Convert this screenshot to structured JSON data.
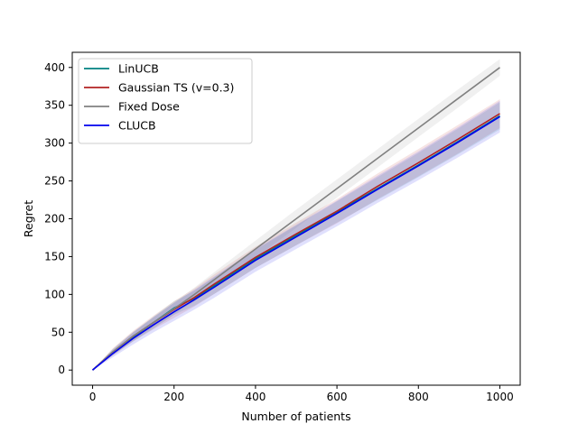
{
  "chart_data": {
    "type": "line",
    "title": "",
    "xlabel": "Number of patients",
    "ylabel": "Regret",
    "xlim": [
      -50,
      1050
    ],
    "ylim": [
      -20,
      420
    ],
    "xticks": [
      0,
      200,
      400,
      600,
      800,
      1000
    ],
    "yticks": [
      0,
      50,
      100,
      150,
      200,
      250,
      300,
      350,
      400
    ],
    "grid": false,
    "legend_position": "top-left",
    "band": "shaded confidence band around each series",
    "series": [
      {
        "name": "LinUCB",
        "color": "#008080",
        "x": [
          0,
          50,
          100,
          150,
          200,
          250,
          300,
          400,
          500,
          600,
          700,
          800,
          900,
          1000
        ],
        "y": [
          0,
          24,
          44,
          63,
          82,
          95,
          112,
          147,
          178,
          209,
          240,
          271,
          303,
          336
        ],
        "band": [
          0,
          4,
          6,
          8,
          9,
          10,
          11,
          12,
          13,
          14,
          15,
          16,
          17,
          18
        ]
      },
      {
        "name": "Gaussian TS (v=0.3)",
        "color": "#b22222",
        "x": [
          0,
          50,
          100,
          150,
          200,
          250,
          300,
          400,
          500,
          600,
          700,
          800,
          900,
          1000
        ],
        "y": [
          0,
          24,
          45,
          63,
          80,
          96,
          114,
          149,
          180,
          210,
          243,
          274,
          306,
          339
        ],
        "band": [
          0,
          5,
          7,
          9,
          11,
          12,
          13,
          14,
          15,
          16,
          17,
          18,
          19,
          19
        ]
      },
      {
        "name": "Fixed Dose",
        "color": "#808080",
        "x": [
          0,
          50,
          100,
          150,
          200,
          250,
          300,
          400,
          500,
          600,
          700,
          800,
          900,
          1000
        ],
        "y": [
          0,
          24,
          45,
          63,
          81,
          100,
          120,
          160,
          200,
          240,
          280,
          320,
          360,
          400
        ],
        "band": [
          0,
          4,
          6,
          7,
          8,
          9,
          10,
          11,
          12,
          12,
          12,
          12,
          12,
          11
        ]
      },
      {
        "name": "CLUCB",
        "color": "#0000ee",
        "x": [
          0,
          50,
          100,
          150,
          200,
          250,
          300,
          400,
          500,
          600,
          700,
          800,
          900,
          1000
        ],
        "y": [
          0,
          22,
          42,
          60,
          77,
          93,
          110,
          145,
          176,
          207,
          239,
          270,
          302,
          335
        ],
        "band": [
          0,
          5,
          8,
          10,
          12,
          13,
          14,
          15,
          16,
          17,
          18,
          19,
          20,
          21
        ]
      }
    ]
  }
}
